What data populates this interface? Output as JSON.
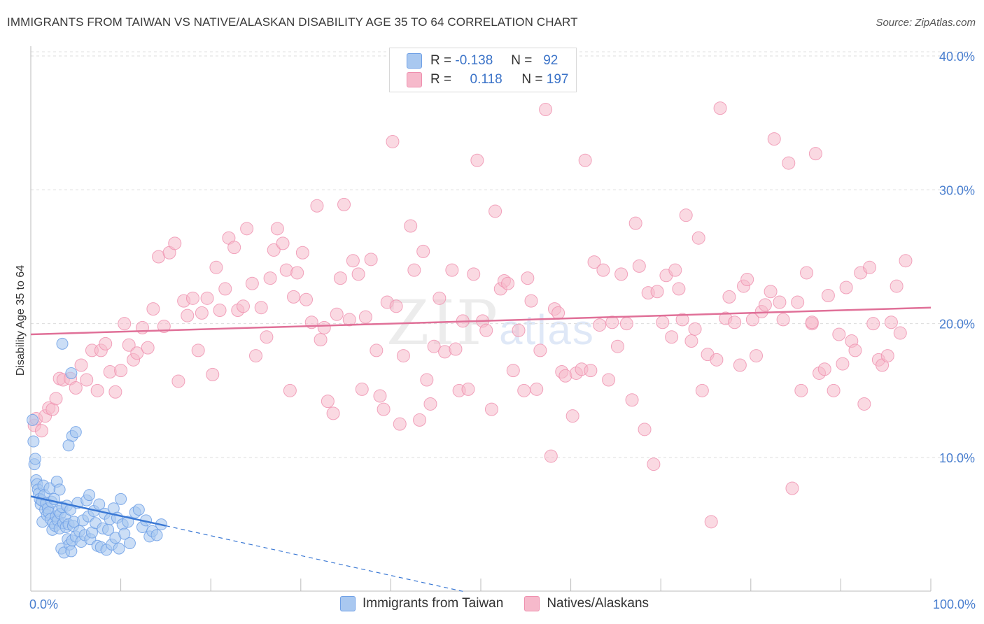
{
  "header": {
    "title": "IMMIGRANTS FROM TAIWAN VS NATIVE/ALASKAN DISABILITY AGE 35 TO 64 CORRELATION CHART",
    "source": "Source: ZipAtlas.com"
  },
  "watermark": {
    "main": "ZIP",
    "sub": "atlas"
  },
  "legend": {
    "rows": [
      {
        "r_label": "R =",
        "r_value": "-0.138",
        "n_label": "N =",
        "n_value": "92",
        "color": "#a9c8f0"
      },
      {
        "r_label": "R =",
        "r_value": "0.118",
        "n_label": "N =",
        "n_value": "197",
        "color": "#f6b9cb"
      }
    ]
  },
  "bottom_legend": {
    "series1": "Immigrants from Taiwan",
    "series2": "Natives/Alaskans"
  },
  "chart_data": {
    "type": "scatter",
    "title": "IMMIGRANTS FROM TAIWAN VS NATIVE/ALASKAN DISABILITY AGE 35 TO 64 CORRELATION CHART",
    "xlabel": "",
    "ylabel": "Disability Age 35 to 64",
    "xlim": [
      0,
      100
    ],
    "ylim": [
      0,
      42
    ],
    "x_tick_labels": [
      "0.0%",
      "100.0%"
    ],
    "y_ticks": [
      10,
      20,
      30,
      40
    ],
    "y_tick_labels": [
      "10.0%",
      "20.0%",
      "30.0%",
      "40.0%"
    ],
    "grid": "horizontal dashed",
    "legend_position": "top-center",
    "colors": {
      "taiwan": "#6fa0e6",
      "taiwan_fill": "#a9c8f0",
      "native": "#ef8fae",
      "native_fill": "#f6b9cb",
      "taiwan_line": "#3a78d4",
      "native_line": "#e07098"
    },
    "series": [
      {
        "name": "Immigrants from Taiwan",
        "trend": {
          "x": [
            0,
            15
          ],
          "y": [
            7.1,
            4.9
          ],
          "dashed_to": [
            48,
            0
          ]
        },
        "points": [
          [
            0.2,
            12.8
          ],
          [
            0.3,
            11.2
          ],
          [
            0.4,
            9.5
          ],
          [
            0.5,
            9.9
          ],
          [
            0.6,
            8.3
          ],
          [
            0.7,
            8.0
          ],
          [
            0.8,
            7.6
          ],
          [
            0.9,
            7.3
          ],
          [
            1.0,
            6.9
          ],
          [
            1.1,
            6.5
          ],
          [
            1.2,
            6.8
          ],
          [
            1.3,
            5.2
          ],
          [
            1.4,
            7.9
          ],
          [
            1.5,
            7.2
          ],
          [
            1.6,
            6.1
          ],
          [
            1.7,
            6.6
          ],
          [
            1.8,
            5.7
          ],
          [
            1.9,
            6.2
          ],
          [
            2.0,
            5.9
          ],
          [
            2.1,
            7.7
          ],
          [
            2.2,
            5.4
          ],
          [
            2.3,
            6.7
          ],
          [
            2.4,
            4.6
          ],
          [
            2.5,
            5.1
          ],
          [
            2.6,
            6.9
          ],
          [
            2.7,
            4.9
          ],
          [
            2.8,
            5.6
          ],
          [
            2.9,
            8.2
          ],
          [
            3.0,
            5.3
          ],
          [
            3.1,
            6.0
          ],
          [
            3.2,
            4.7
          ],
          [
            3.3,
            5.8
          ],
          [
            3.4,
            3.2
          ],
          [
            3.5,
            6.3
          ],
          [
            3.6,
            5.1
          ],
          [
            3.7,
            2.9
          ],
          [
            3.8,
            5.5
          ],
          [
            3.9,
            4.8
          ],
          [
            4.0,
            6.4
          ],
          [
            4.1,
            3.9
          ],
          [
            4.2,
            5.0
          ],
          [
            4.3,
            3.5
          ],
          [
            4.4,
            6.1
          ],
          [
            4.5,
            3.0
          ],
          [
            4.6,
            3.8
          ],
          [
            4.7,
            4.9
          ],
          [
            4.8,
            5.2
          ],
          [
            5.0,
            4.1
          ],
          [
            5.2,
            6.6
          ],
          [
            5.4,
            4.5
          ],
          [
            5.6,
            3.7
          ],
          [
            5.8,
            5.3
          ],
          [
            6.0,
            4.2
          ],
          [
            6.2,
            6.8
          ],
          [
            6.4,
            5.6
          ],
          [
            6.6,
            3.9
          ],
          [
            6.8,
            4.4
          ],
          [
            7.0,
            6.0
          ],
          [
            7.2,
            5.1
          ],
          [
            7.4,
            3.4
          ],
          [
            7.6,
            6.5
          ],
          [
            7.8,
            3.3
          ],
          [
            8.0,
            4.7
          ],
          [
            8.2,
            5.8
          ],
          [
            8.4,
            3.1
          ],
          [
            8.6,
            4.6
          ],
          [
            8.8,
            5.4
          ],
          [
            9.0,
            3.5
          ],
          [
            9.2,
            6.2
          ],
          [
            9.4,
            4.0
          ],
          [
            9.6,
            5.5
          ],
          [
            9.8,
            3.2
          ],
          [
            10.0,
            6.9
          ],
          [
            10.2,
            5.0
          ],
          [
            10.4,
            4.3
          ],
          [
            10.8,
            5.2
          ],
          [
            11.0,
            3.6
          ],
          [
            11.6,
            5.9
          ],
          [
            12.0,
            6.1
          ],
          [
            12.4,
            4.8
          ],
          [
            12.8,
            5.3
          ],
          [
            13.2,
            4.1
          ],
          [
            13.5,
            4.5
          ],
          [
            14.0,
            4.2
          ],
          [
            14.5,
            5.0
          ],
          [
            3.5,
            18.5
          ],
          [
            4.5,
            16.3
          ],
          [
            4.6,
            11.6
          ],
          [
            4.2,
            10.9
          ],
          [
            5.0,
            11.9
          ],
          [
            3.2,
            7.6
          ],
          [
            6.5,
            7.2
          ]
        ]
      },
      {
        "name": "Natives/Alaskans",
        "trend": {
          "x": [
            0,
            100
          ],
          "y": [
            19.2,
            21.2
          ]
        },
        "points": [
          [
            0.4,
            12.4
          ],
          [
            0.6,
            12.9
          ],
          [
            1.2,
            12.0
          ],
          [
            1.6,
            13.1
          ],
          [
            2.0,
            13.7
          ],
          [
            2.4,
            13.6
          ],
          [
            2.8,
            14.4
          ],
          [
            3.2,
            15.9
          ],
          [
            3.6,
            15.8
          ],
          [
            4.4,
            15.9
          ],
          [
            5.0,
            15.2
          ],
          [
            5.6,
            16.9
          ],
          [
            6.2,
            15.8
          ],
          [
            6.8,
            18.0
          ],
          [
            7.4,
            15.0
          ],
          [
            7.8,
            18.0
          ],
          [
            8.3,
            18.5
          ],
          [
            8.8,
            16.4
          ],
          [
            9.4,
            14.9
          ],
          [
            10.0,
            16.5
          ],
          [
            10.4,
            20.0
          ],
          [
            10.9,
            18.4
          ],
          [
            11.4,
            17.3
          ],
          [
            11.8,
            17.8
          ],
          [
            12.4,
            19.7
          ],
          [
            13.0,
            18.2
          ],
          [
            13.6,
            21.1
          ],
          [
            14.2,
            25.0
          ],
          [
            14.8,
            19.8
          ],
          [
            15.4,
            25.3
          ],
          [
            16.0,
            26.0
          ],
          [
            16.4,
            15.7
          ],
          [
            17.0,
            21.7
          ],
          [
            17.4,
            20.6
          ],
          [
            18.0,
            21.9
          ],
          [
            18.6,
            18.0
          ],
          [
            19.0,
            20.8
          ],
          [
            19.6,
            21.9
          ],
          [
            20.2,
            16.2
          ],
          [
            20.6,
            24.2
          ],
          [
            21.0,
            21.0
          ],
          [
            21.6,
            22.6
          ],
          [
            22.0,
            26.4
          ],
          [
            22.6,
            25.7
          ],
          [
            23.0,
            21.0
          ],
          [
            23.6,
            21.3
          ],
          [
            24.0,
            27.1
          ],
          [
            24.6,
            23.0
          ],
          [
            25.0,
            17.6
          ],
          [
            25.6,
            21.2
          ],
          [
            26.2,
            19.0
          ],
          [
            26.6,
            23.4
          ],
          [
            27.0,
            25.5
          ],
          [
            27.4,
            27.1
          ],
          [
            28.0,
            26.0
          ],
          [
            28.4,
            24.0
          ],
          [
            28.8,
            15.0
          ],
          [
            29.2,
            22.0
          ],
          [
            29.6,
            23.8
          ],
          [
            30.2,
            25.3
          ],
          [
            30.6,
            21.8
          ],
          [
            31.2,
            20.1
          ],
          [
            31.8,
            28.8
          ],
          [
            32.2,
            18.8
          ],
          [
            32.6,
            19.7
          ],
          [
            33.0,
            14.2
          ],
          [
            33.6,
            13.3
          ],
          [
            34.0,
            20.7
          ],
          [
            34.4,
            23.4
          ],
          [
            34.8,
            28.9
          ],
          [
            35.4,
            20.3
          ],
          [
            35.8,
            24.7
          ],
          [
            36.4,
            23.7
          ],
          [
            36.8,
            15.1
          ],
          [
            37.2,
            20.5
          ],
          [
            37.8,
            24.8
          ],
          [
            38.4,
            18.0
          ],
          [
            38.8,
            14.6
          ],
          [
            39.2,
            13.6
          ],
          [
            39.6,
            21.6
          ],
          [
            40.2,
            33.6
          ],
          [
            40.6,
            21.3
          ],
          [
            41.0,
            12.5
          ],
          [
            41.4,
            17.6
          ],
          [
            42.2,
            27.3
          ],
          [
            42.6,
            24.0
          ],
          [
            43.2,
            12.8
          ],
          [
            43.6,
            25.4
          ],
          [
            44.0,
            15.8
          ],
          [
            44.4,
            14.0
          ],
          [
            44.8,
            18.3
          ],
          [
            45.4,
            21.9
          ],
          [
            46.0,
            17.9
          ],
          [
            46.8,
            24.0
          ],
          [
            47.2,
            18.1
          ],
          [
            47.6,
            15.0
          ],
          [
            48.0,
            20.2
          ],
          [
            48.6,
            15.1
          ],
          [
            49.2,
            23.7
          ],
          [
            49.6,
            32.2
          ],
          [
            50.2,
            20.2
          ],
          [
            50.6,
            19.5
          ],
          [
            51.2,
            13.6
          ],
          [
            51.6,
            28.4
          ],
          [
            52.2,
            22.6
          ],
          [
            52.6,
            23.2
          ],
          [
            53.0,
            23.0
          ],
          [
            53.6,
            16.5
          ],
          [
            54.2,
            19.5
          ],
          [
            54.8,
            15.0
          ],
          [
            55.2,
            23.4
          ],
          [
            55.6,
            21.7
          ],
          [
            56.2,
            15.1
          ],
          [
            56.6,
            18.0
          ],
          [
            57.2,
            36.0
          ],
          [
            57.8,
            10.1
          ],
          [
            58.2,
            21.1
          ],
          [
            58.6,
            20.8
          ],
          [
            59.0,
            16.4
          ],
          [
            59.4,
            16.1
          ],
          [
            60.2,
            13.1
          ],
          [
            60.6,
            16.3
          ],
          [
            61.2,
            16.6
          ],
          [
            61.6,
            32.2
          ],
          [
            62.2,
            16.5
          ],
          [
            62.6,
            24.6
          ],
          [
            63.2,
            19.9
          ],
          [
            63.6,
            24.0
          ],
          [
            64.2,
            15.8
          ],
          [
            64.6,
            20.1
          ],
          [
            65.2,
            18.3
          ],
          [
            65.6,
            23.7
          ],
          [
            66.2,
            20.0
          ],
          [
            66.8,
            14.3
          ],
          [
            67.2,
            27.5
          ],
          [
            67.6,
            24.3
          ],
          [
            68.2,
            12.1
          ],
          [
            68.6,
            22.3
          ],
          [
            69.2,
            9.5
          ],
          [
            69.6,
            22.4
          ],
          [
            70.2,
            20.1
          ],
          [
            70.6,
            23.6
          ],
          [
            71.2,
            19.0
          ],
          [
            71.6,
            24.0
          ],
          [
            72.0,
            22.6
          ],
          [
            72.4,
            20.3
          ],
          [
            72.8,
            28.1
          ],
          [
            73.4,
            18.7
          ],
          [
            73.8,
            19.6
          ],
          [
            74.2,
            26.4
          ],
          [
            74.6,
            15.0
          ],
          [
            75.2,
            17.7
          ],
          [
            75.6,
            5.2
          ],
          [
            76.2,
            17.3
          ],
          [
            76.6,
            36.1
          ],
          [
            77.2,
            20.4
          ],
          [
            77.6,
            22.0
          ],
          [
            78.2,
            20.1
          ],
          [
            78.8,
            16.9
          ],
          [
            79.2,
            22.8
          ],
          [
            79.6,
            23.3
          ],
          [
            80.2,
            20.3
          ],
          [
            80.6,
            17.6
          ],
          [
            81.2,
            20.9
          ],
          [
            81.6,
            21.4
          ],
          [
            82.2,
            22.4
          ],
          [
            82.6,
            33.8
          ],
          [
            83.2,
            21.6
          ],
          [
            83.6,
            20.3
          ],
          [
            84.2,
            32.0
          ],
          [
            84.6,
            7.7
          ],
          [
            85.2,
            21.6
          ],
          [
            85.6,
            15.0
          ],
          [
            86.2,
            23.8
          ],
          [
            86.8,
            20.0
          ],
          [
            87.2,
            32.7
          ],
          [
            87.6,
            16.3
          ],
          [
            88.2,
            16.6
          ],
          [
            88.6,
            22.1
          ],
          [
            89.2,
            15.0
          ],
          [
            89.8,
            19.2
          ],
          [
            90.2,
            17.0
          ],
          [
            90.6,
            22.7
          ],
          [
            91.2,
            18.7
          ],
          [
            91.6,
            18.0
          ],
          [
            92.2,
            23.8
          ],
          [
            92.6,
            14.0
          ],
          [
            93.2,
            24.2
          ],
          [
            93.6,
            20.0
          ],
          [
            94.2,
            17.3
          ],
          [
            94.6,
            16.9
          ],
          [
            95.2,
            17.6
          ],
          [
            95.6,
            20.1
          ],
          [
            96.2,
            22.8
          ],
          [
            96.6,
            19.3
          ],
          [
            97.2,
            24.7
          ],
          [
            86.8,
            20.1
          ]
        ]
      }
    ]
  }
}
